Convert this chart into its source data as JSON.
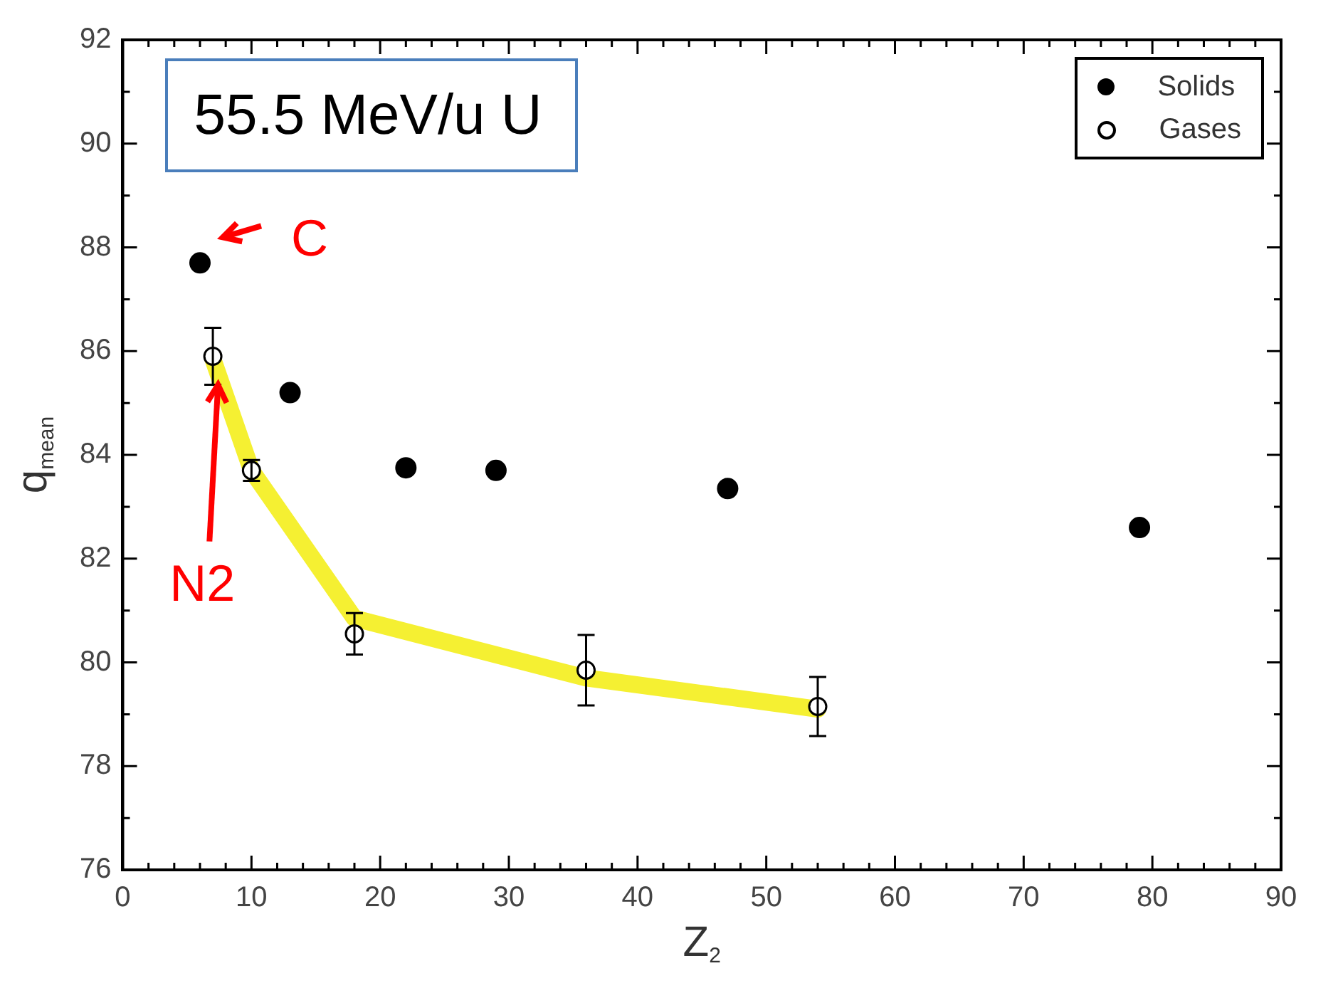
{
  "chart_data": {
    "type": "scatter",
    "title": "55.5 MeV/u U",
    "xlabel": "Z$_{2}$",
    "ylabel": "q$_{mean}$",
    "xlim": [
      0,
      90
    ],
    "xticks": [
      0,
      {
        "value": 2,
        "label": null
      },
      {
        "value": 4,
        "label": null
      },
      {
        "value": 6,
        "label": null
      },
      {
        "value": 8,
        "label": null
      },
      10,
      {
        "value": 12,
        "label": null
      },
      {
        "value": 14,
        "label": null
      },
      {
        "value": 16,
        "label": null
      },
      {
        "value": 18,
        "label": null
      },
      20,
      {
        "value": 22,
        "label": null
      },
      {
        "value": 24,
        "label": null
      },
      {
        "value": 26,
        "label": null
      },
      {
        "value": 28,
        "label": null
      },
      30,
      {
        "value": 32,
        "label": null
      },
      {
        "value": 34,
        "label": null
      },
      {
        "value": 36,
        "label": null
      },
      {
        "value": 38,
        "label": null
      },
      40,
      {
        "value": 42,
        "label": null
      },
      {
        "value": 44,
        "label": null
      },
      {
        "value": 46,
        "label": null
      },
      {
        "value": 48,
        "label": null
      },
      50,
      {
        "value": 52,
        "label": null
      },
      {
        "value": 54,
        "label": null
      },
      {
        "value": 56,
        "label": null
      },
      {
        "value": 58,
        "label": null
      },
      60,
      {
        "value": 62,
        "label": null
      },
      {
        "value": 64,
        "label": null
      },
      {
        "value": 66,
        "label": null
      },
      {
        "value": 68,
        "label": null
      },
      70,
      {
        "value": 72,
        "label": null
      },
      {
        "value": 74,
        "label": null
      },
      {
        "value": 76,
        "label": null
      },
      {
        "value": 78,
        "label": null
      },
      80,
      {
        "value": 82,
        "label": null
      },
      {
        "value": 84,
        "label": null
      },
      {
        "value": 86,
        "label": null
      },
      {
        "value": 88,
        "label": null
      },
      90
    ],
    "ylim": [
      76,
      92
    ],
    "yticks": [
      76,
      {
        "value": 77,
        "label": null
      },
      78,
      {
        "value": 79,
        "label": null
      },
      80,
      {
        "value": 81,
        "label": null
      },
      82,
      {
        "value": 83,
        "label": null
      },
      84,
      {
        "value": 85,
        "label": null
      },
      86,
      {
        "value": 87,
        "label": null
      },
      88,
      {
        "value": 89,
        "label": null
      },
      90,
      {
        "value": 91,
        "label": null
      },
      92
    ],
    "series": [
      {
        "name": "Solids",
        "color": "#000000",
        "x": [
          6,
          13,
          22,
          29,
          47,
          79
        ],
        "values": [
          87.7,
          85.2,
          83.75,
          83.7,
          83.35,
          82.6
        ]
      },
      {
        "name": "Gases",
        "color": "#000000",
        "x": [
          7,
          10,
          18,
          36,
          54
        ],
        "values": [
          85.9,
          83.7,
          80.55,
          79.85,
          79.15
        ],
        "errors": [
          0.55,
          0.2,
          0.4,
          0.68,
          0.57
        ]
      },
      {
        "type": "line",
        "marker": "none",
        "color": "#f5f032",
        "x": [
          7,
          10,
          18,
          36,
          54
        ],
        "values": [
          85.85,
          83.7,
          80.85,
          79.7,
          79.1
        ]
      }
    ],
    "marker": "circle",
    "grid": false,
    "legend": "top right",
    "annotations": [
      {
        "text": "C",
        "x": 6,
        "y": 87.7
      },
      {
        "text": "N2",
        "x": 7.4,
        "y": 85.35
      }
    ]
  }
}
